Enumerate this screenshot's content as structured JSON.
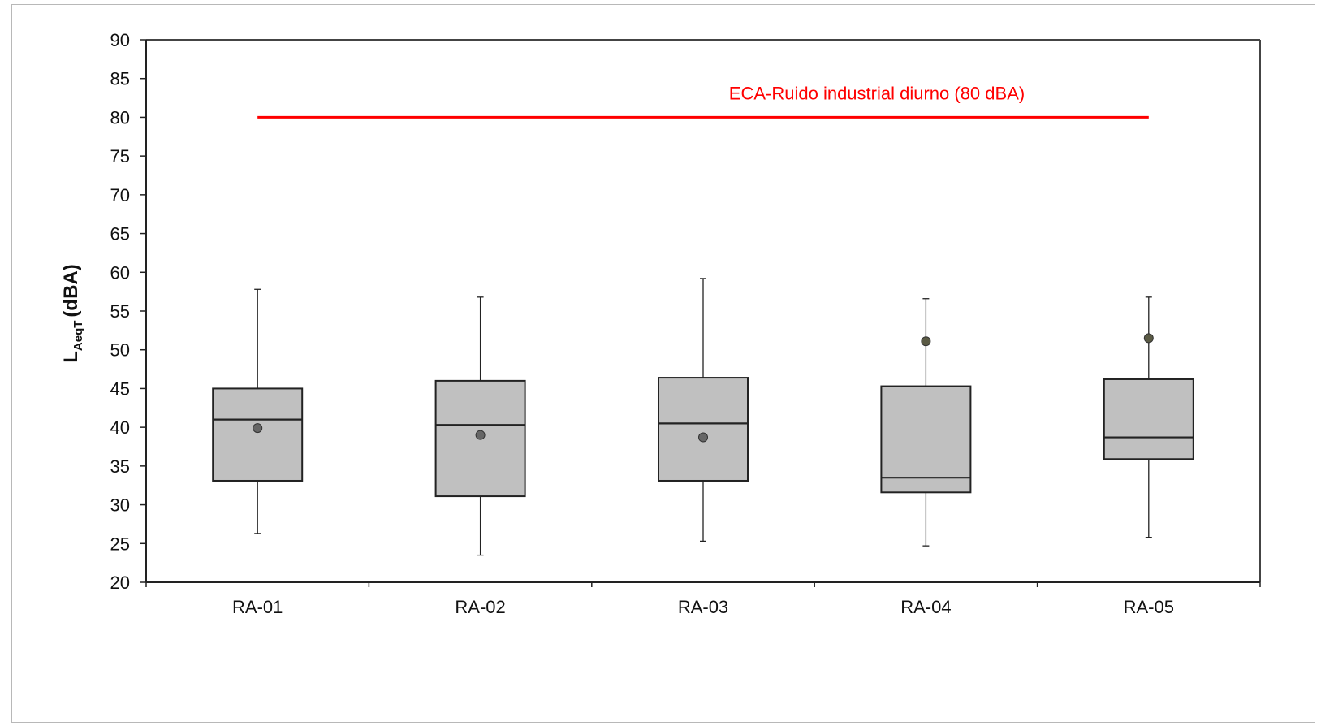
{
  "chart_data": {
    "type": "boxplot",
    "ylabel": {
      "main": "L",
      "sub": "AeqT",
      "unit": "(dBA)"
    },
    "ylim": [
      20,
      90
    ],
    "yticks": [
      20,
      25,
      30,
      35,
      40,
      45,
      50,
      55,
      60,
      65,
      70,
      75,
      80,
      85,
      90
    ],
    "categories": [
      "RA-01",
      "RA-02",
      "RA-03",
      "RA-04",
      "RA-05"
    ],
    "boxes": [
      {
        "min": 26.3,
        "q1": 33.1,
        "median": 41.0,
        "q3": 45.0,
        "max": 57.8,
        "mean": 39.9
      },
      {
        "min": 23.5,
        "q1": 31.1,
        "median": 40.3,
        "q3": 46.0,
        "max": 56.8,
        "mean": 39.0
      },
      {
        "min": 25.3,
        "q1": 33.1,
        "median": 40.5,
        "q3": 46.4,
        "max": 59.2,
        "mean": 38.7
      },
      {
        "min": 24.7,
        "q1": 31.6,
        "median": 33.5,
        "q3": 45.3,
        "max": 56.6,
        "mean": 51.1
      },
      {
        "min": 25.8,
        "q1": 35.9,
        "median": 38.7,
        "q3": 46.2,
        "max": 56.8,
        "mean": 51.5
      }
    ],
    "threshold": {
      "value": 80,
      "label": "ECA-Ruido industrial diurno (80 dBA)",
      "color": "#ff0000"
    },
    "colors": {
      "box_fill": "#c0c0c0",
      "mean_marker": "#666666",
      "mean_marker_alt": "#5a5a44"
    },
    "grid": false,
    "legend": "none"
  }
}
